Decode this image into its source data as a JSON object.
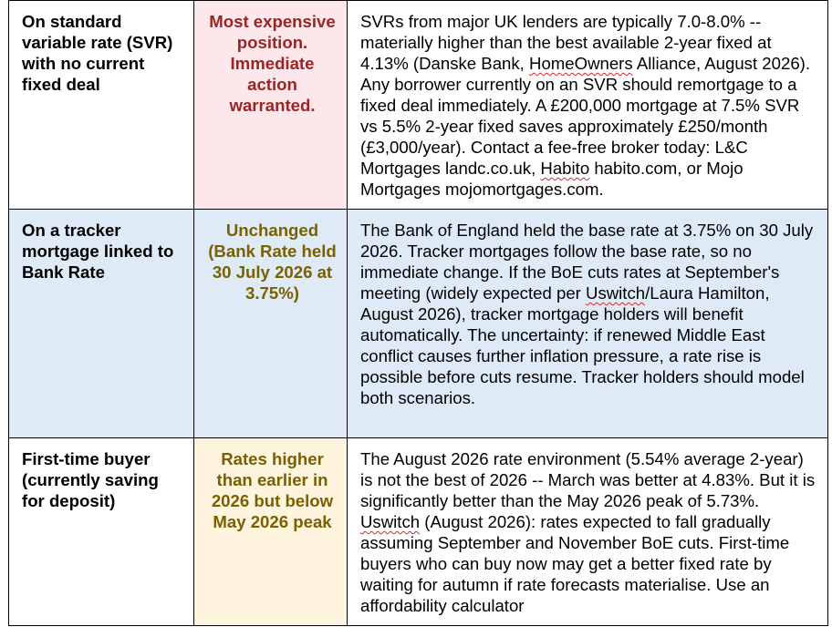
{
  "colors": {
    "border": "#000000",
    "row1_tint": "#fce8ea",
    "row2_tint": "#deebf7",
    "row3_tint": "#fff4dd",
    "status_red": "#9b2424",
    "status_olive": "#7a6000",
    "spellcheck_underline": "#d22a2a"
  },
  "rows": [
    {
      "situation": "On standard variable rate (SVR) with no current fixed deal",
      "status": "Most expensive position. Immediate action warranted.",
      "detail": {
        "p1": "SVRs from major UK lenders are typically 7.0-8.0% -- materially higher than the best available 2-year fixed at 4.13% (Danske Bank, ",
        "w1": "HomeOwners",
        "p2": " Alliance, August 2026). Any borrower currently on an SVR should remortgage to a fixed deal immediately. A £200,000 mortgage at 7.5% SVR vs 5.5% 2-year fixed saves approximately £250/month (£3,000/year). Contact a fee-free broker today: L&C Mortgages landc.co.uk, ",
        "w2": "Habito",
        "p3": " habito.com, or Mojo Mortgages mojomortgages.com."
      }
    },
    {
      "situation": "On a tracker mortgage linked to Bank Rate",
      "status": "Unchanged (Bank Rate held 30 July 2026 at 3.75%)",
      "detail": {
        "p1": "The Bank of England held the base rate at 3.75% on 30 July 2026. Tracker mortgages follow the base rate, so no immediate change. If the BoE cuts rates at September's meeting (widely expected per ",
        "w1": "Uswitch",
        "p2": "/Laura Hamilton, August 2026), tracker mortgage holders will benefit automatically. The uncertainty: if renewed Middle East conflict causes further inflation pressure, a rate rise is possible before cuts resume. Tracker holders should model both scenarios."
      }
    },
    {
      "situation": "First-time buyer (currently saving for deposit)",
      "status": "Rates higher than earlier in 2026 but below May 2026 peak",
      "detail": {
        "p1": "The August 2026 rate environment (5.54% average 2-year) is not the best of 2026 -- March was better at 4.83%. But it is significantly better than the May 2026 peak of 5.73%. ",
        "w1": "Uswitch",
        "p2": " (August 2026): rates expected to fall gradually assuming September and November BoE cuts. First-time buyers who can buy now may get a better fixed rate by waiting for autumn if rate forecasts materialise. Use an affordability calculator"
      }
    }
  ]
}
